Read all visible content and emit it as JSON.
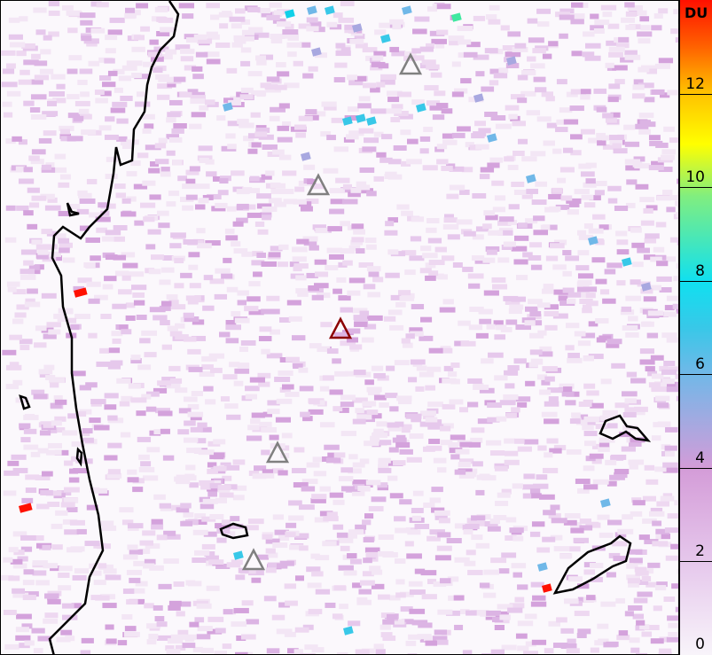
{
  "map": {
    "coastline_color": "#000000",
    "volcano_markers": [
      {
        "name": "",
        "highlighted": false
      },
      {
        "name": "",
        "highlighted": false
      },
      {
        "name": "",
        "highlighted": true
      },
      {
        "name": "",
        "highlighted": false
      },
      {
        "name": "",
        "highlighted": false
      }
    ],
    "marker_color": "#808080",
    "highlight_marker_color": "#8b0000"
  },
  "colorbar": {
    "unit": "DU",
    "ticks": [
      "0",
      "2",
      "4",
      "6",
      "8",
      "10",
      "12"
    ],
    "range": [
      0,
      14
    ],
    "colors": [
      "#f8f2fa",
      "#e8c8ec",
      "#d9a0dc",
      "#a8a8e0",
      "#70b8e8",
      "#10e0f0",
      "#80ee80",
      "#ffff00",
      "#ffa000",
      "#ff2000"
    ]
  }
}
